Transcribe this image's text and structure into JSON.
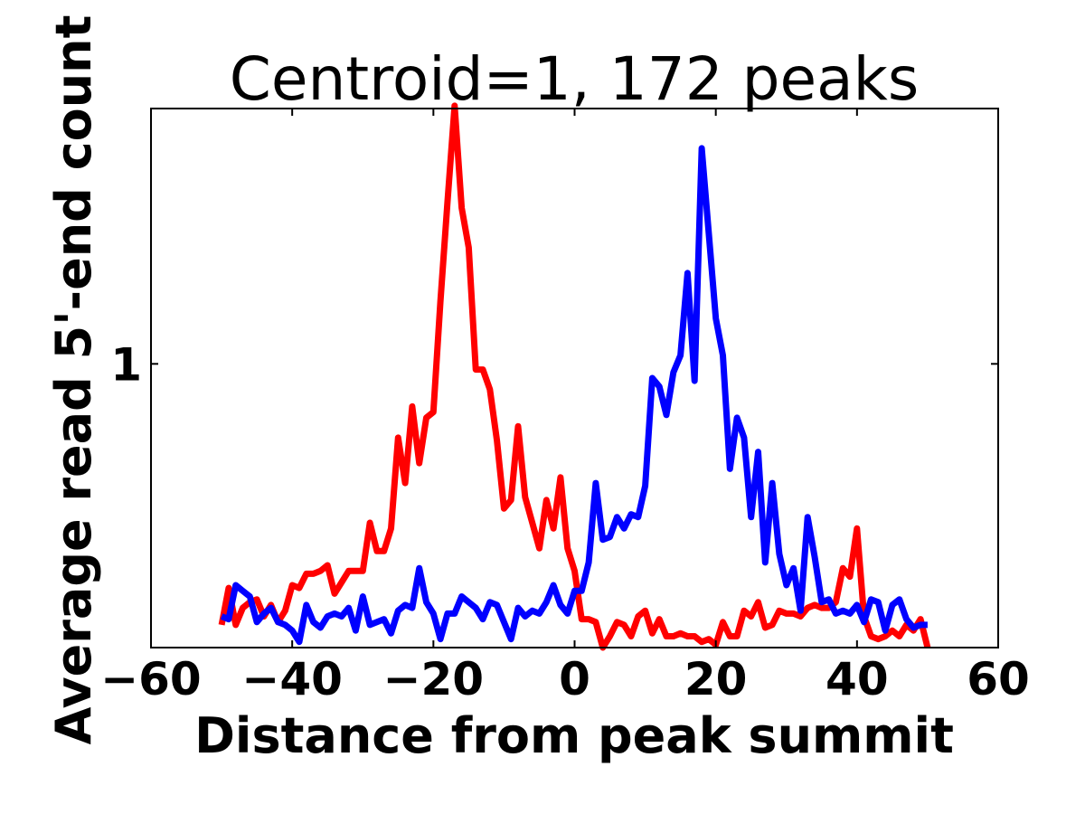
{
  "chart_data": {
    "type": "line",
    "title": "Centroid=1, 172 peaks",
    "xlabel": "Distance from peak summit",
    "ylabel": "Average read 5'-end count",
    "xlim": [
      -60,
      60
    ],
    "ylim": [
      0,
      1.9
    ],
    "xticks": [
      "−60",
      "−40",
      "−20",
      "0",
      "20",
      "40",
      "60"
    ],
    "xtick_values": [
      -60,
      -40,
      -20,
      0,
      20,
      40,
      60
    ],
    "yticks": [
      "1"
    ],
    "ytick_values": [
      1
    ],
    "grid": false,
    "x": [
      -50,
      -49,
      -48,
      -47,
      -46,
      -45,
      -44,
      -43,
      -42,
      -41,
      -40,
      -39,
      -38,
      -37,
      -36,
      -35,
      -34,
      -33,
      -32,
      -31,
      -30,
      -29,
      -28,
      -27,
      -26,
      -25,
      -24,
      -23,
      -22,
      -21,
      -20,
      -19,
      -18,
      -17,
      -16,
      -15,
      -14,
      -13,
      -12,
      -11,
      -10,
      -9,
      -8,
      -7,
      -6,
      -5,
      -4,
      -3,
      -2,
      -1,
      0,
      1,
      2,
      3,
      4,
      5,
      6,
      7,
      8,
      9,
      10,
      11,
      12,
      13,
      14,
      15,
      16,
      17,
      18,
      19,
      20,
      21,
      22,
      23,
      24,
      25,
      26,
      27,
      28,
      29,
      30,
      31,
      32,
      33,
      34,
      35,
      36,
      37,
      38,
      39,
      40,
      41,
      42,
      43,
      44,
      45,
      46,
      47,
      48,
      49,
      50
    ],
    "series": [
      {
        "color": "#ff0000",
        "values": [
          0.08,
          0.21,
          0.08,
          0.14,
          0.16,
          0.17,
          0.11,
          0.15,
          0.09,
          0.13,
          0.22,
          0.21,
          0.26,
          0.26,
          0.27,
          0.29,
          0.19,
          0.23,
          0.27,
          0.27,
          0.27,
          0.44,
          0.34,
          0.34,
          0.42,
          0.74,
          0.58,
          0.85,
          0.65,
          0.81,
          0.83,
          1.22,
          1.57,
          1.91,
          1.55,
          1.41,
          0.98,
          0.98,
          0.91,
          0.73,
          0.49,
          0.52,
          0.78,
          0.53,
          0.44,
          0.35,
          0.52,
          0.42,
          0.6,
          0.35,
          0.27,
          0.1,
          0.1,
          0.09,
          0.0,
          0.04,
          0.09,
          0.08,
          0.04,
          0.11,
          0.13,
          0.05,
          0.1,
          0.04,
          0.04,
          0.05,
          0.04,
          0.04,
          0.02,
          0.03,
          0.01,
          0.09,
          0.04,
          0.04,
          0.13,
          0.11,
          0.16,
          0.07,
          0.08,
          0.13,
          0.12,
          0.12,
          0.11,
          0.14,
          0.15,
          0.14,
          0.14,
          0.16,
          0.28,
          0.25,
          0.42,
          0.11,
          0.04,
          0.03,
          0.04,
          0.06,
          0.04,
          0.08,
          0.06,
          0.1,
          0.0
        ]
      },
      {
        "color": "#0000ff",
        "values": [
          0.11,
          0.1,
          0.22,
          0.2,
          0.18,
          0.09,
          0.12,
          0.14,
          0.09,
          0.08,
          0.06,
          0.02,
          0.15,
          0.09,
          0.07,
          0.11,
          0.12,
          0.11,
          0.14,
          0.06,
          0.18,
          0.08,
          0.09,
          0.1,
          0.05,
          0.13,
          0.15,
          0.14,
          0.28,
          0.16,
          0.12,
          0.03,
          0.12,
          0.12,
          0.18,
          0.16,
          0.14,
          0.1,
          0.16,
          0.15,
          0.09,
          0.03,
          0.14,
          0.11,
          0.13,
          0.12,
          0.16,
          0.22,
          0.15,
          0.12,
          0.2,
          0.2,
          0.3,
          0.58,
          0.38,
          0.39,
          0.46,
          0.42,
          0.47,
          0.46,
          0.57,
          0.95,
          0.92,
          0.82,
          0.97,
          1.03,
          1.32,
          0.94,
          1.76,
          1.46,
          1.16,
          1.03,
          0.63,
          0.81,
          0.74,
          0.46,
          0.69,
          0.3,
          0.58,
          0.33,
          0.22,
          0.28,
          0.13,
          0.46,
          0.32,
          0.16,
          0.17,
          0.12,
          0.13,
          0.12,
          0.15,
          0.09,
          0.17,
          0.16,
          0.06,
          0.15,
          0.17,
          0.1,
          0.07,
          0.08,
          0.08
        ]
      }
    ]
  }
}
